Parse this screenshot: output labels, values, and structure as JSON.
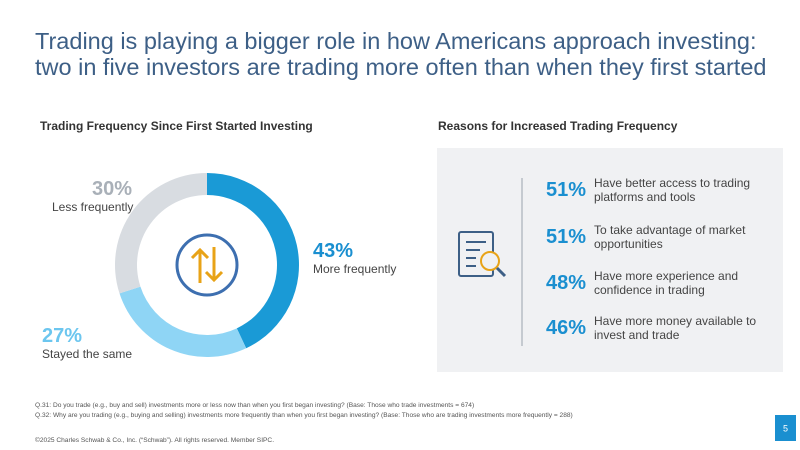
{
  "title": [
    "Trading is playing a bigger role in how Americans approach investing:",
    "two in five investors are trading more often than when they first started"
  ],
  "chart_data": [
    {
      "type": "pie",
      "title": "Trading Frequency Since First Started Investing",
      "donut": true,
      "categories": [
        "More frequently",
        "Stayed the same",
        "Less frequently"
      ],
      "values": [
        43,
        27,
        30
      ],
      "value_labels": [
        "43%",
        "27%",
        "30%"
      ],
      "colors": [
        "#1a9ad6",
        "#8fd5f5",
        "#d8dce1"
      ],
      "label_colors": [
        "#1a8fd0",
        "#6cc6ef",
        "#a9b0b8"
      ]
    },
    {
      "type": "stat-list",
      "title": "Reasons for Increased Trading Frequency",
      "categories": [
        "Have better access to trading platforms and tools",
        "To take advantage of market opportunities",
        "Have more experience and confidence in trading",
        "Have more money available to invest and trade"
      ],
      "values": [
        51,
        51,
        48,
        46
      ],
      "value_labels": [
        "51%",
        "51%",
        "48%",
        "46%"
      ],
      "color": "#1a8fd0"
    }
  ],
  "footnotes": [
    "Q.31:  Do you trade (e.g., buy and sell) investments more or less now than when you first began investing? (Base: Those who trade investments = 674)",
    "Q.32:  Why are you trading (e.g., buying and selling) investments more frequently than when you first began investing? (Base: Those who are trading investments more frequently = 288)"
  ],
  "copyright": "©2025 Charles Schwab & Co., Inc. (“Schwab”). All rights reserved. Member SIPC.",
  "page_number": 5
}
